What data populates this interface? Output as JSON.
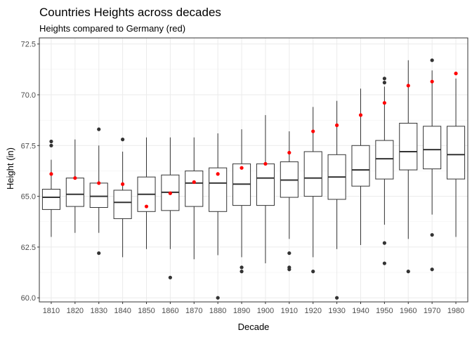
{
  "chart_data": {
    "type": "boxplot",
    "title": "Countries Heights across decades",
    "subtitle": "Heights compared to Germany (red)",
    "xlabel": "Decade",
    "ylabel": "Height (in)",
    "ylim": [
      59.8,
      72.8
    ],
    "yticks": [
      60.0,
      62.5,
      65.0,
      67.5,
      70.0,
      72.5
    ],
    "ytick_labels": [
      "60.0",
      "62.5",
      "65.0",
      "67.5",
      "70.0",
      "72.5"
    ],
    "grid": true,
    "highlight_color": "#ff0000",
    "box_color": "#333333",
    "categories": [
      "1810",
      "1820",
      "1830",
      "1840",
      "1850",
      "1860",
      "1870",
      "1880",
      "1890",
      "1900",
      "1910",
      "1920",
      "1930",
      "1940",
      "1950",
      "1960",
      "1970",
      "1980"
    ],
    "boxes": [
      {
        "min": 63.0,
        "q1": 64.35,
        "median": 64.95,
        "q3": 65.35,
        "max": 66.8,
        "outliers": [
          67.5,
          67.7
        ]
      },
      {
        "min": 63.2,
        "q1": 64.5,
        "median": 65.1,
        "q3": 65.9,
        "max": 67.8,
        "outliers": []
      },
      {
        "min": 63.2,
        "q1": 64.45,
        "median": 65.0,
        "q3": 65.65,
        "max": 67.5,
        "outliers": [
          62.2,
          68.3
        ]
      },
      {
        "min": 62.0,
        "q1": 63.9,
        "median": 64.7,
        "q3": 65.3,
        "max": 67.2,
        "outliers": [
          67.8
        ]
      },
      {
        "min": 62.4,
        "q1": 64.25,
        "median": 65.1,
        "q3": 65.95,
        "max": 67.9,
        "outliers": []
      },
      {
        "min": 62.4,
        "q1": 64.3,
        "median": 65.2,
        "q3": 66.05,
        "max": 67.9,
        "outliers": [
          61.0
        ]
      },
      {
        "min": 61.9,
        "q1": 64.5,
        "median": 65.65,
        "q3": 66.25,
        "max": 67.9,
        "outliers": []
      },
      {
        "min": 62.1,
        "q1": 64.25,
        "median": 65.65,
        "q3": 66.4,
        "max": 68.1,
        "outliers": [
          60.0
        ]
      },
      {
        "min": 62.0,
        "q1": 64.55,
        "median": 65.6,
        "q3": 66.6,
        "max": 68.3,
        "outliers": [
          61.3,
          61.5
        ]
      },
      {
        "min": 61.7,
        "q1": 64.55,
        "median": 65.9,
        "q3": 66.6,
        "max": 69.0,
        "outliers": []
      },
      {
        "min": 62.9,
        "q1": 64.95,
        "median": 65.8,
        "q3": 66.7,
        "max": 68.2,
        "outliers": [
          61.4,
          61.5,
          62.2
        ]
      },
      {
        "min": 62.0,
        "q1": 65.0,
        "median": 65.9,
        "q3": 67.2,
        "max": 69.4,
        "outliers": [
          61.3
        ]
      },
      {
        "min": 62.4,
        "q1": 64.85,
        "median": 65.95,
        "q3": 67.05,
        "max": 69.7,
        "outliers": [
          60.0
        ]
      },
      {
        "min": 62.6,
        "q1": 65.5,
        "median": 66.3,
        "q3": 67.5,
        "max": 70.3,
        "outliers": []
      },
      {
        "min": 63.6,
        "q1": 65.85,
        "median": 66.85,
        "q3": 67.75,
        "max": 70.4,
        "outliers": [
          61.7,
          62.7,
          70.6,
          70.8
        ]
      },
      {
        "min": 62.9,
        "q1": 66.3,
        "median": 67.2,
        "q3": 68.6,
        "max": 71.7,
        "outliers": [
          61.3
        ]
      },
      {
        "min": 64.1,
        "q1": 66.35,
        "median": 67.3,
        "q3": 68.45,
        "max": 71.2,
        "outliers": [
          61.4,
          63.1,
          71.7
        ]
      },
      {
        "min": 63.0,
        "q1": 65.85,
        "median": 67.05,
        "q3": 68.45,
        "max": 70.8,
        "outliers": []
      }
    ],
    "highlight": {
      "name": "Germany",
      "values": [
        66.1,
        65.9,
        65.65,
        65.6,
        64.5,
        65.15,
        65.7,
        66.1,
        66.4,
        66.6,
        67.15,
        68.2,
        68.5,
        69.0,
        69.6,
        70.45,
        70.65,
        71.05
      ]
    }
  }
}
